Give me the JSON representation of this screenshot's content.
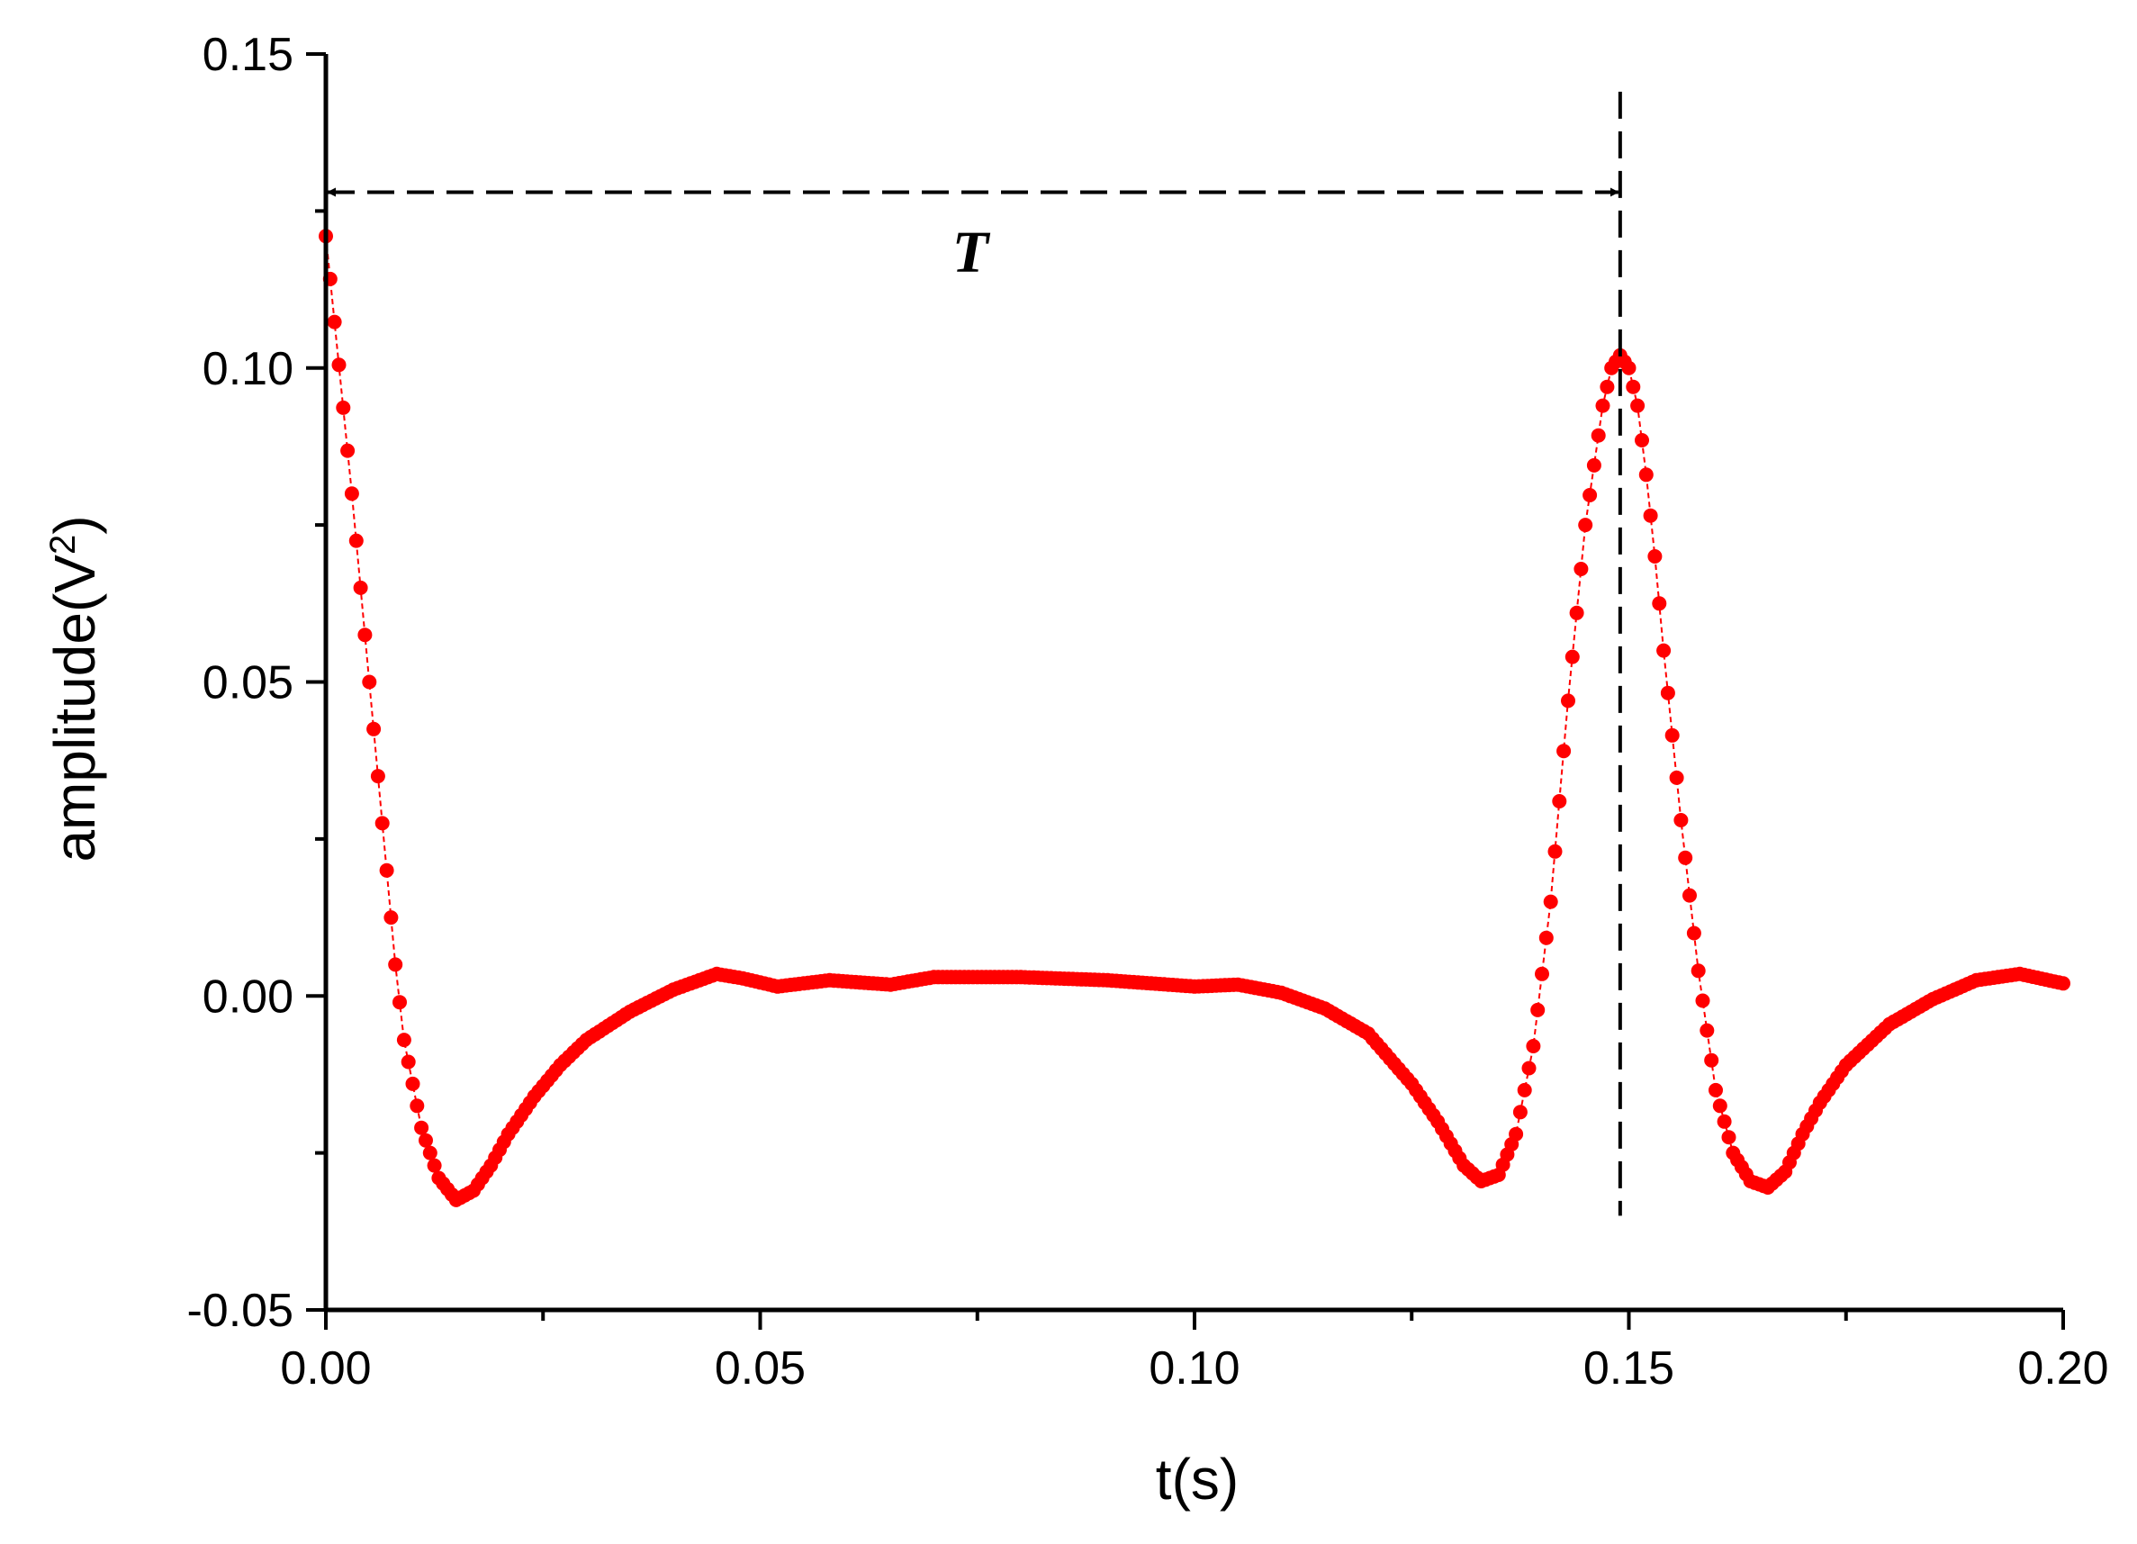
{
  "chart_data": {
    "type": "scatter",
    "title": "",
    "xlabel": "t(s)",
    "ylabel": {
      "text": "amplitude(V",
      "sup": "2",
      "close": ")"
    },
    "xlim": [
      0,
      0.2
    ],
    "ylim": [
      -0.05,
      0.15
    ],
    "x_ticks": [
      0,
      0.05,
      0.1,
      0.15,
      0.2
    ],
    "x_tick_labels": [
      "0.00",
      "0.05",
      "0.10",
      "0.15",
      "0.20"
    ],
    "y_ticks": [
      -0.05,
      0,
      0.05,
      0.1,
      0.15
    ],
    "y_tick_labels": [
      "-0.05",
      "0.00",
      "0.05",
      "0.10",
      "0.15"
    ],
    "grid": false,
    "series_color": "#ff0000",
    "series": [
      {
        "x": [
          0,
          0.003,
          0.006,
          0.008,
          0.009,
          0.011,
          0.013,
          0.015,
          0.017,
          0.019,
          0.021,
          0.024,
          0.027,
          0.03,
          0.035,
          0.04,
          0.045,
          0.048,
          0.052,
          0.058,
          0.065,
          0.07,
          0.08,
          0.09,
          0.095,
          0.1,
          0.105,
          0.11,
          0.115,
          0.12,
          0.125,
          0.128,
          0.131,
          0.133,
          0.135,
          0.137,
          0.139,
          0.141,
          0.143,
          0.145,
          0.147,
          0.148,
          0.149,
          0.15,
          0.151,
          0.152,
          0.153,
          0.154,
          0.156,
          0.158,
          0.16,
          0.162,
          0.164,
          0.166,
          0.168,
          0.17,
          0.172,
          0.175,
          0.18,
          0.185,
          0.19,
          0.195,
          0.2
        ],
        "y": [
          0.121,
          0.08,
          0.035,
          0.005,
          -0.007,
          -0.021,
          -0.029,
          -0.0325,
          -0.031,
          -0.027,
          -0.022,
          -0.016,
          -0.011,
          -0.007,
          -0.0025,
          0.001,
          0.0035,
          0.0028,
          0.0015,
          0.0025,
          0.0018,
          0.003,
          0.003,
          0.0025,
          0.002,
          0.0015,
          0.0018,
          0.0005,
          -0.002,
          -0.006,
          -0.014,
          -0.02,
          -0.027,
          -0.0295,
          -0.0285,
          -0.022,
          -0.008,
          0.015,
          0.047,
          0.075,
          0.094,
          0.1,
          0.102,
          0.1,
          0.094,
          0.083,
          0.07,
          0.055,
          0.028,
          0.004,
          -0.015,
          -0.025,
          -0.0295,
          -0.0305,
          -0.028,
          -0.022,
          -0.017,
          -0.011,
          -0.0045,
          -0.0005,
          0.0025,
          0.0035,
          0.002
        ]
      }
    ],
    "annotations": {
      "period_label": "T",
      "period_arrow_x": [
        0,
        0.149
      ],
      "period_arrow_y": 0.128,
      "vline_x": 0.149,
      "vline_y": [
        -0.035,
        0.144
      ]
    }
  }
}
